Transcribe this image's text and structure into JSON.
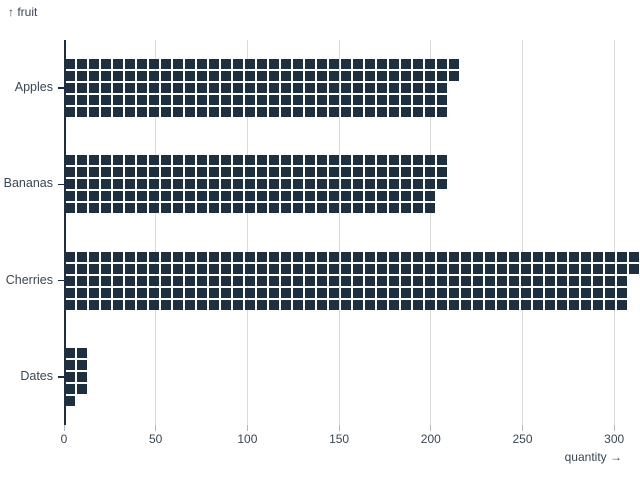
{
  "chart_data": {
    "type": "bar",
    "subtype": "waffle-horizontal",
    "title": "",
    "ylabel": "↑ fruit",
    "xlabel": "quantity →",
    "categories": [
      "Apples",
      "Bananas",
      "Cherries",
      "Dates"
    ],
    "values": [
      212,
      207,
      310,
      12
    ],
    "x_ticks": [
      0,
      50,
      100,
      150,
      200,
      250,
      300
    ],
    "xlim": [
      0,
      315
    ],
    "grid": true,
    "legend": "none",
    "colors": {
      "cell": "#1e2f3f",
      "axis": "#1e2f3f",
      "grid": "#dadada",
      "label": "#394653"
    }
  }
}
